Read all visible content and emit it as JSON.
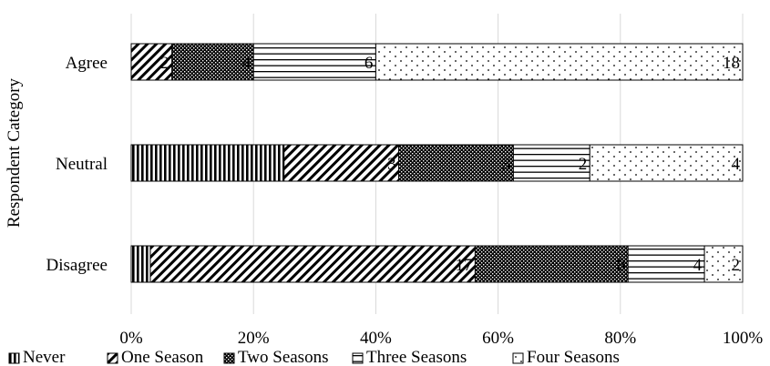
{
  "chart_data": {
    "type": "bar",
    "orientation": "horizontal",
    "stacked": "percent",
    "title": "",
    "xlabel": "",
    "ylabel": "Respondent Category",
    "xlim": [
      0,
      100
    ],
    "x_ticks": [
      "0%",
      "20%",
      "40%",
      "60%",
      "80%",
      "100%"
    ],
    "categories": [
      "Agree",
      "Neutral",
      "Disagree"
    ],
    "series": [
      {
        "name": "Never",
        "values": [
          0,
          4,
          1
        ],
        "pattern": "vertical-lines"
      },
      {
        "name": "One Season",
        "values": [
          2,
          3,
          17
        ],
        "pattern": "diagonal-lines"
      },
      {
        "name": "Two Seasons",
        "values": [
          4,
          3,
          8
        ],
        "pattern": "checker"
      },
      {
        "name": "Three Seasons",
        "values": [
          6,
          2,
          4
        ],
        "pattern": "horizontal-lines"
      },
      {
        "name": "Four Seasons",
        "values": [
          18,
          4,
          2
        ],
        "pattern": "dots"
      }
    ],
    "data_labels": [
      [
        null,
        "2",
        "4",
        "6",
        "18"
      ],
      [
        null,
        "3",
        "3",
        "2",
        "4"
      ],
      [
        null,
        "17",
        "8",
        "4",
        "2"
      ]
    ],
    "grid": true,
    "legend_position": "bottom"
  }
}
